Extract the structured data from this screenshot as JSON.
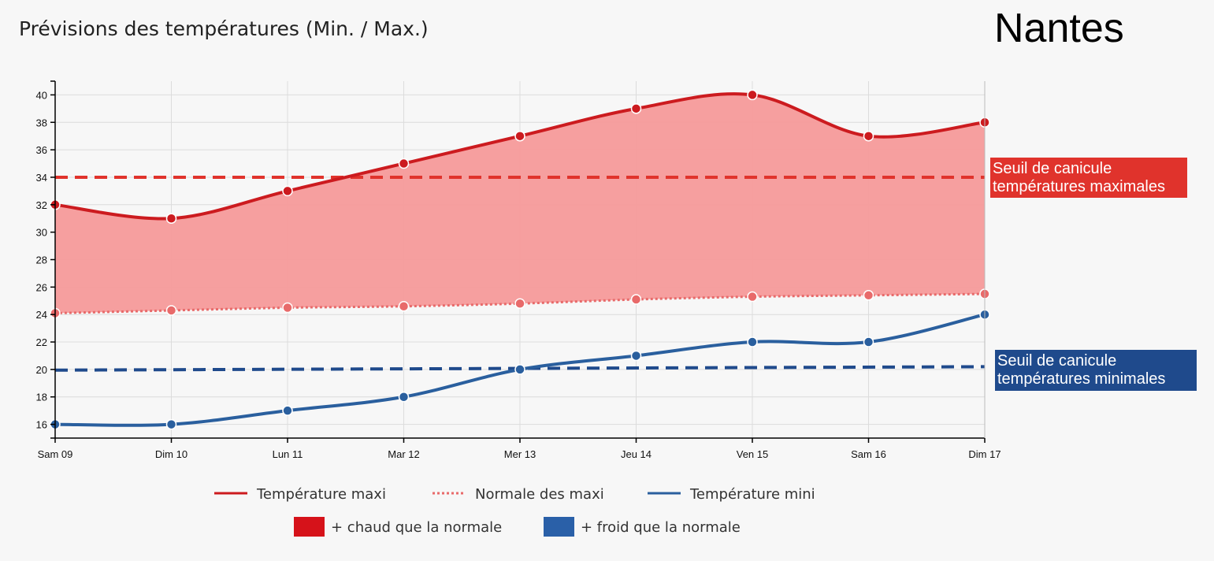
{
  "title": "Prévisions des températures (Min. / Max.)",
  "city": "Nantes",
  "colors": {
    "max": "#cc1b1f",
    "normal_max": "#e86a6a",
    "min": "#2a5f9e",
    "warm_fill": "#f59a9a",
    "threshold_max": "#e0332c",
    "threshold_min": "#1f4a8c",
    "legend_warm": "#d6121a",
    "legend_cold": "#2a60a8"
  },
  "chart_data": {
    "type": "line",
    "categories": [
      "Sam 09",
      "Dim 10",
      "Lun 11",
      "Mar 12",
      "Mer 13",
      "Jeu 14",
      "Ven 15",
      "Sam 16",
      "Dim 17"
    ],
    "series": [
      {
        "name": "Température maxi",
        "values": [
          32,
          31,
          33,
          35,
          37,
          39,
          40,
          37,
          38
        ]
      },
      {
        "name": "Normale des maxi",
        "values": [
          24.1,
          24.3,
          24.5,
          24.6,
          24.8,
          25.1,
          25.3,
          25.4,
          25.5
        ]
      },
      {
        "name": "Température mini",
        "values": [
          16,
          16,
          17,
          18,
          20,
          21,
          22,
          22,
          24
        ]
      }
    ],
    "thresholds": [
      {
        "label": [
          "Seuil de canicule",
          "températures maximales"
        ],
        "value": 34
      },
      {
        "label": [
          "Seuil de canicule",
          "températures minimales"
        ],
        "value": 20
      }
    ],
    "ylim": [
      15,
      41
    ],
    "yticks": [
      16,
      18,
      20,
      22,
      24,
      26,
      28,
      30,
      32,
      34,
      36,
      38,
      40
    ],
    "grid": true,
    "legend": {
      "position": "bottom",
      "lines": [
        "Température maxi",
        "Normale des maxi",
        "Température mini"
      ],
      "boxes": [
        "+ chaud que la normale",
        "+ froid que la normale"
      ]
    }
  }
}
